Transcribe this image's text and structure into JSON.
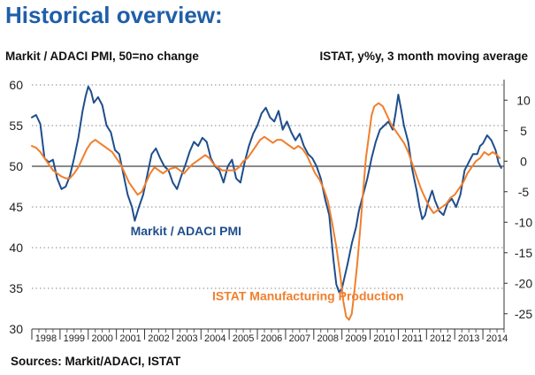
{
  "title": "Historical overview:",
  "left_axis_title": "Markit / ADACI PMI, 50=no change",
  "right_axis_title": "ISTAT, y%y, 3 month moving average",
  "source": "Sources: Markit/ADACI, ISTAT",
  "colors": {
    "pmi": "#1f4e8c",
    "production": "#f07f2d",
    "grid": "#888888",
    "axis": "#333333"
  },
  "chart_data": {
    "type": "line",
    "x_axis": {
      "categories": [
        "1998",
        "1999",
        "2000",
        "2001",
        "2002",
        "2003",
        "2004",
        "2005",
        "2006",
        "2007",
        "2008",
        "2009",
        "2010",
        "2011",
        "2012",
        "2013",
        "2014"
      ],
      "range": [
        1998,
        2014.75
      ]
    },
    "y_left": {
      "ticks": [
        30,
        35,
        40,
        45,
        50,
        55,
        60
      ],
      "range": [
        30,
        60
      ]
    },
    "y_right": {
      "ticks": [
        -25,
        -20,
        -15,
        -10,
        -5,
        0,
        5,
        10
      ],
      "range": [
        -27.5,
        12.5
      ]
    },
    "reference_line": {
      "axis": "left",
      "value": 50,
      "style": "solid"
    },
    "grid": {
      "horizontal": true,
      "style": "dotted"
    },
    "series": [
      {
        "name": "Markit / ADACI PMI",
        "axis": "left",
        "color_key": "pmi",
        "label_anchor": {
          "x": 2001.5,
          "y": 41.5
        },
        "points": [
          [
            1998.0,
            56.0
          ],
          [
            1998.15,
            56.3
          ],
          [
            1998.3,
            55.2
          ],
          [
            1998.45,
            51.0
          ],
          [
            1998.6,
            50.5
          ],
          [
            1998.75,
            50.8
          ],
          [
            1998.9,
            48.5
          ],
          [
            1999.05,
            47.2
          ],
          [
            1999.2,
            47.5
          ],
          [
            1999.35,
            48.8
          ],
          [
            1999.5,
            51.0
          ],
          [
            1999.65,
            53.5
          ],
          [
            1999.8,
            56.8
          ],
          [
            1999.9,
            58.5
          ],
          [
            2000.0,
            59.8
          ],
          [
            2000.1,
            59.2
          ],
          [
            2000.2,
            57.8
          ],
          [
            2000.35,
            58.5
          ],
          [
            2000.5,
            57.5
          ],
          [
            2000.65,
            55.0
          ],
          [
            2000.8,
            54.2
          ],
          [
            2000.95,
            52.0
          ],
          [
            2001.1,
            51.5
          ],
          [
            2001.25,
            49.0
          ],
          [
            2001.4,
            46.5
          ],
          [
            2001.55,
            45.0
          ],
          [
            2001.65,
            43.3
          ],
          [
            2001.8,
            45.0
          ],
          [
            2001.95,
            46.5
          ],
          [
            2002.1,
            49.0
          ],
          [
            2002.25,
            51.5
          ],
          [
            2002.4,
            52.2
          ],
          [
            2002.55,
            51.0
          ],
          [
            2002.7,
            50.0
          ],
          [
            2002.85,
            49.5
          ],
          [
            2003.0,
            48.0
          ],
          [
            2003.15,
            47.2
          ],
          [
            2003.3,
            48.8
          ],
          [
            2003.45,
            50.2
          ],
          [
            2003.6,
            51.8
          ],
          [
            2003.75,
            53.0
          ],
          [
            2003.9,
            52.5
          ],
          [
            2004.05,
            53.5
          ],
          [
            2004.2,
            53.0
          ],
          [
            2004.35,
            51.0
          ],
          [
            2004.5,
            50.0
          ],
          [
            2004.65,
            49.5
          ],
          [
            2004.8,
            48.0
          ],
          [
            2004.95,
            50.0
          ],
          [
            2005.1,
            50.8
          ],
          [
            2005.25,
            48.5
          ],
          [
            2005.4,
            48.0
          ],
          [
            2005.55,
            50.5
          ],
          [
            2005.7,
            52.5
          ],
          [
            2005.85,
            54.0
          ],
          [
            2006.0,
            55.0
          ],
          [
            2006.15,
            56.5
          ],
          [
            2006.3,
            57.2
          ],
          [
            2006.45,
            56.0
          ],
          [
            2006.6,
            55.5
          ],
          [
            2006.75,
            56.8
          ],
          [
            2006.9,
            54.5
          ],
          [
            2007.05,
            55.5
          ],
          [
            2007.2,
            54.2
          ],
          [
            2007.35,
            53.2
          ],
          [
            2007.5,
            54.0
          ],
          [
            2007.65,
            52.5
          ],
          [
            2007.8,
            51.5
          ],
          [
            2007.95,
            51.0
          ],
          [
            2008.1,
            50.0
          ],
          [
            2008.25,
            48.5
          ],
          [
            2008.4,
            46.0
          ],
          [
            2008.55,
            44.0
          ],
          [
            2008.7,
            38.5
          ],
          [
            2008.8,
            35.5
          ],
          [
            2008.9,
            34.5
          ],
          [
            2009.0,
            35.0
          ],
          [
            2009.1,
            36.5
          ],
          [
            2009.2,
            38.0
          ],
          [
            2009.35,
            40.5
          ],
          [
            2009.5,
            42.5
          ],
          [
            2009.6,
            44.5
          ],
          [
            2009.75,
            46.5
          ],
          [
            2009.9,
            48.5
          ],
          [
            2010.05,
            51.0
          ],
          [
            2010.2,
            53.0
          ],
          [
            2010.35,
            54.5
          ],
          [
            2010.5,
            55.0
          ],
          [
            2010.65,
            55.5
          ],
          [
            2010.8,
            54.5
          ],
          [
            2010.9,
            56.5
          ],
          [
            2011.0,
            58.8
          ],
          [
            2011.1,
            57.0
          ],
          [
            2011.2,
            55.0
          ],
          [
            2011.35,
            53.0
          ],
          [
            2011.5,
            49.5
          ],
          [
            2011.65,
            47.0
          ],
          [
            2011.75,
            45.0
          ],
          [
            2011.85,
            43.5
          ],
          [
            2011.95,
            44.0
          ],
          [
            2012.05,
            45.5
          ],
          [
            2012.2,
            47.0
          ],
          [
            2012.3,
            45.8
          ],
          [
            2012.45,
            44.5
          ],
          [
            2012.6,
            44.0
          ],
          [
            2012.75,
            45.5
          ],
          [
            2012.9,
            46.0
          ],
          [
            2013.05,
            45.0
          ],
          [
            2013.2,
            46.5
          ],
          [
            2013.35,
            49.5
          ],
          [
            2013.5,
            50.5
          ],
          [
            2013.65,
            51.5
          ],
          [
            2013.8,
            51.5
          ],
          [
            2013.9,
            52.5
          ],
          [
            2014.0,
            52.8
          ],
          [
            2014.15,
            53.8
          ],
          [
            2014.3,
            53.2
          ],
          [
            2014.45,
            52.0
          ],
          [
            2014.55,
            50.5
          ],
          [
            2014.65,
            49.8
          ]
        ]
      },
      {
        "name": "ISTAT Manufacturing Production",
        "axis": "right",
        "color_key": "production",
        "label_anchor": {
          "x": 2004.4,
          "y": -22.8
        },
        "points": [
          [
            1998.0,
            2.5
          ],
          [
            1998.15,
            2.2
          ],
          [
            1998.3,
            1.5
          ],
          [
            1998.45,
            0.5
          ],
          [
            1998.6,
            -0.5
          ],
          [
            1998.75,
            -1.5
          ],
          [
            1998.9,
            -2.0
          ],
          [
            1999.05,
            -2.5
          ],
          [
            1999.2,
            -2.8
          ],
          [
            1999.35,
            -2.8
          ],
          [
            1999.5,
            -2.0
          ],
          [
            1999.65,
            -1.0
          ],
          [
            1999.8,
            0.5
          ],
          [
            1999.95,
            2.0
          ],
          [
            2000.1,
            3.0
          ],
          [
            2000.25,
            3.5
          ],
          [
            2000.4,
            3.0
          ],
          [
            2000.55,
            2.5
          ],
          [
            2000.7,
            2.0
          ],
          [
            2000.85,
            1.5
          ],
          [
            2001.0,
            0.5
          ],
          [
            2001.15,
            -0.5
          ],
          [
            2001.3,
            -2.0
          ],
          [
            2001.45,
            -3.5
          ],
          [
            2001.6,
            -4.5
          ],
          [
            2001.75,
            -5.5
          ],
          [
            2001.9,
            -5.0
          ],
          [
            2002.05,
            -3.5
          ],
          [
            2002.2,
            -2.0
          ],
          [
            2002.35,
            -1.0
          ],
          [
            2002.5,
            -1.5
          ],
          [
            2002.65,
            -2.0
          ],
          [
            2002.8,
            -1.5
          ],
          [
            2002.95,
            -1.2
          ],
          [
            2003.1,
            -1.0
          ],
          [
            2003.25,
            -1.5
          ],
          [
            2003.4,
            -2.0
          ],
          [
            2003.55,
            -1.2
          ],
          [
            2003.7,
            -0.5
          ],
          [
            2003.85,
            0.0
          ],
          [
            2004.0,
            0.5
          ],
          [
            2004.15,
            1.0
          ],
          [
            2004.3,
            0.5
          ],
          [
            2004.45,
            -0.5
          ],
          [
            2004.6,
            -1.0
          ],
          [
            2004.75,
            -1.5
          ],
          [
            2004.9,
            -1.5
          ],
          [
            2005.05,
            -1.5
          ],
          [
            2005.2,
            -1.5
          ],
          [
            2005.35,
            -1.0
          ],
          [
            2005.5,
            0.0
          ],
          [
            2005.65,
            0.5
          ],
          [
            2005.8,
            1.5
          ],
          [
            2005.95,
            2.5
          ],
          [
            2006.1,
            3.5
          ],
          [
            2006.25,
            4.0
          ],
          [
            2006.4,
            3.5
          ],
          [
            2006.55,
            3.0
          ],
          [
            2006.7,
            3.5
          ],
          [
            2006.85,
            3.5
          ],
          [
            2007.0,
            3.0
          ],
          [
            2007.15,
            2.5
          ],
          [
            2007.3,
            2.0
          ],
          [
            2007.45,
            2.5
          ],
          [
            2007.6,
            2.0
          ],
          [
            2007.75,
            1.0
          ],
          [
            2007.9,
            -0.5
          ],
          [
            2008.05,
            -2.0
          ],
          [
            2008.2,
            -3.0
          ],
          [
            2008.35,
            -4.5
          ],
          [
            2008.5,
            -6.5
          ],
          [
            2008.65,
            -10.0
          ],
          [
            2008.8,
            -14.0
          ],
          [
            2008.95,
            -19.0
          ],
          [
            2009.05,
            -23.0
          ],
          [
            2009.15,
            -25.5
          ],
          [
            2009.25,
            -26.0
          ],
          [
            2009.35,
            -25.0
          ],
          [
            2009.45,
            -21.0
          ],
          [
            2009.55,
            -16.5
          ],
          [
            2009.65,
            -11.0
          ],
          [
            2009.75,
            -5.0
          ],
          [
            2009.85,
            0.5
          ],
          [
            2009.95,
            4.0
          ],
          [
            2010.05,
            7.5
          ],
          [
            2010.15,
            9.0
          ],
          [
            2010.3,
            9.5
          ],
          [
            2010.45,
            9.0
          ],
          [
            2010.6,
            7.5
          ],
          [
            2010.75,
            6.0
          ],
          [
            2010.9,
            5.0
          ],
          [
            2011.05,
            4.0
          ],
          [
            2011.2,
            3.0
          ],
          [
            2011.35,
            1.5
          ],
          [
            2011.5,
            -0.5
          ],
          [
            2011.65,
            -2.5
          ],
          [
            2011.8,
            -4.5
          ],
          [
            2011.95,
            -6.0
          ],
          [
            2012.1,
            -7.5
          ],
          [
            2012.25,
            -8.5
          ],
          [
            2012.4,
            -8.0
          ],
          [
            2012.55,
            -7.5
          ],
          [
            2012.7,
            -7.0
          ],
          [
            2012.85,
            -6.0
          ],
          [
            2013.0,
            -5.5
          ],
          [
            2013.15,
            -4.5
          ],
          [
            2013.3,
            -3.5
          ],
          [
            2013.45,
            -2.0
          ],
          [
            2013.6,
            -1.0
          ],
          [
            2013.75,
            0.0
          ],
          [
            2013.9,
            0.5
          ],
          [
            2014.05,
            1.5
          ],
          [
            2014.2,
            1.0
          ],
          [
            2014.35,
            1.5
          ],
          [
            2014.5,
            1.0
          ],
          [
            2014.6,
            0.5
          ]
        ]
      }
    ]
  }
}
